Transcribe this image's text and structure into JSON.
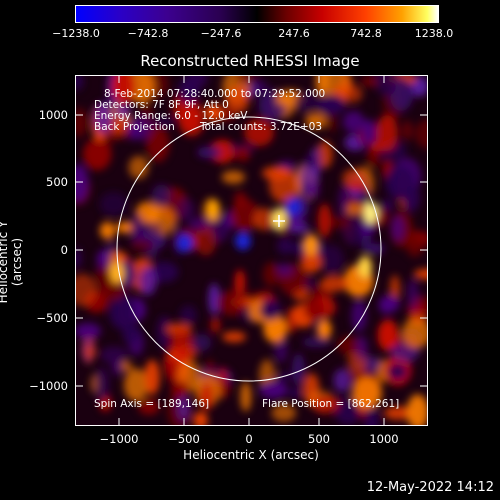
{
  "colorbar": {
    "ticks": [
      "−1238.0",
      "−742.8",
      "−247.6",
      "247.6",
      "742.8",
      "1238.0"
    ]
  },
  "plot": {
    "title": "Reconstructed RHESSI Image",
    "xlabel": "Heliocentric X (arcsec)",
    "ylabel": "Heliocentric Y (arcsec)",
    "xticks": [
      "−1000",
      "−500",
      "0",
      "500",
      "1000"
    ],
    "yticks": [
      "1000",
      "500",
      "0",
      "−500",
      "−1000"
    ],
    "info_line1": "8-Feb-2014 07:28:40.000 to 07:29:52.000",
    "info_line2": "Detectors: 7F 8F 9F, Att 0",
    "info_line3": "Energy Range: 6.0 - 12.0 keV",
    "info_line4a": "Back Projection",
    "info_line4b": "Total counts: 3.72E+03",
    "spin_axis": "Spin Axis = [189,146]",
    "flare_position": "Flare Position = [862,261]"
  },
  "footer": {
    "date": "12-May-2022 14:12"
  }
}
